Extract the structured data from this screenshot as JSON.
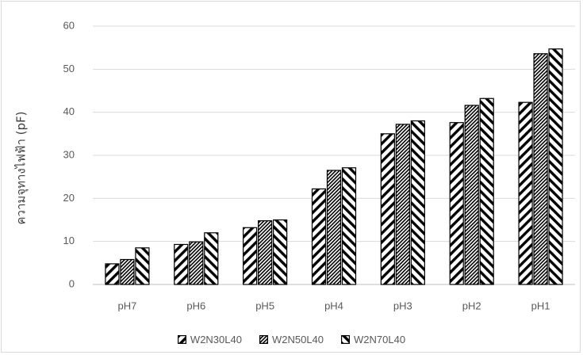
{
  "chart_data": {
    "type": "bar",
    "title": "",
    "xlabel": "",
    "ylabel": "ความจุทางไฟฟ้า (pF)",
    "ylim": [
      0,
      60
    ],
    "yticks": [
      0,
      10,
      20,
      30,
      40,
      50,
      60
    ],
    "grid": true,
    "legend_position": "bottom",
    "categories": [
      "pH7",
      "pH6",
      "pH5",
      "pH4",
      "pH3",
      "pH2",
      "pH1"
    ],
    "series": [
      {
        "name": "W2N30L40",
        "pattern": "wide-diagonal-up",
        "values": [
          4.8,
          9.3,
          13.2,
          22.2,
          35.0,
          37.6,
          42.3
        ]
      },
      {
        "name": "W2N50L40",
        "pattern": "dense-diagonal-up",
        "values": [
          5.8,
          9.9,
          14.8,
          26.5,
          37.2,
          41.6,
          53.6
        ]
      },
      {
        "name": "W2N70L40",
        "pattern": "wide-diagonal-down",
        "values": [
          8.5,
          12.0,
          15.0,
          27.1,
          38.0,
          43.2,
          54.7
        ]
      }
    ],
    "colors": {
      "bar_fill": "#000000",
      "bar_background": "#ffffff",
      "grid": "#d9d9d9",
      "axis": "#bfbfbf",
      "text": "#595959"
    }
  }
}
